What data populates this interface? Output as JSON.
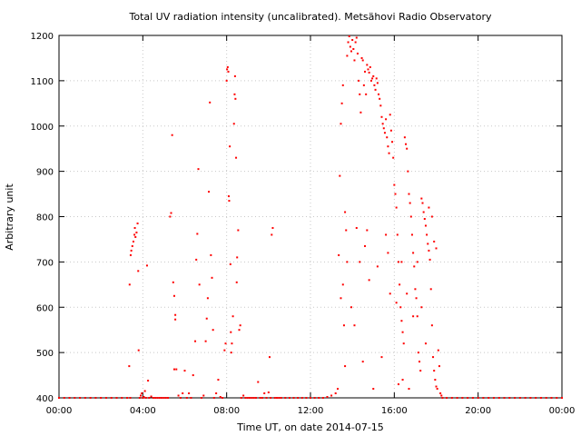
{
  "chart_data": {
    "type": "scatter",
    "title": "Total UV radiation intensity (uncalibrated). Metsähovi Radio Observatory",
    "xlabel": "Time UT, on date 2014-07-15",
    "ylabel": "Arbitrary unit",
    "xlim": [
      0,
      24
    ],
    "ylim": [
      400,
      1200
    ],
    "grid": true,
    "x_ticks": [
      {
        "value": 0,
        "label": "00:00"
      },
      {
        "value": 4,
        "label": "04:00"
      },
      {
        "value": 8,
        "label": "08:00"
      },
      {
        "value": 12,
        "label": "12:00"
      },
      {
        "value": 16,
        "label": "16:00"
      },
      {
        "value": 20,
        "label": "20:00"
      },
      {
        "value": 24,
        "label": "00:00"
      }
    ],
    "y_ticks": [
      {
        "value": 400,
        "label": "400"
      },
      {
        "value": 500,
        "label": "500"
      },
      {
        "value": 600,
        "label": "600"
      },
      {
        "value": 700,
        "label": "700"
      },
      {
        "value": 800,
        "label": "800"
      },
      {
        "value": 900,
        "label": "900"
      },
      {
        "value": 1000,
        "label": "1000"
      },
      {
        "value": 1100,
        "label": "1100"
      },
      {
        "value": 1200,
        "label": "1200"
      }
    ],
    "series": [
      {
        "color": "#ff0000",
        "points": [
          [
            0.0,
            400
          ],
          [
            0.25,
            400
          ],
          [
            0.5,
            400
          ],
          [
            0.75,
            400
          ],
          [
            1.0,
            400
          ],
          [
            1.25,
            400
          ],
          [
            1.5,
            400
          ],
          [
            1.75,
            400
          ],
          [
            2.0,
            400
          ],
          [
            2.25,
            400
          ],
          [
            2.5,
            400
          ],
          [
            2.75,
            400
          ],
          [
            3.0,
            400
          ],
          [
            3.25,
            400
          ],
          [
            3.4,
            400
          ],
          [
            3.35,
            470
          ],
          [
            3.37,
            650
          ],
          [
            3.42,
            715
          ],
          [
            3.45,
            725
          ],
          [
            3.5,
            735
          ],
          [
            3.55,
            745
          ],
          [
            3.6,
            760
          ],
          [
            3.62,
            775
          ],
          [
            3.65,
            755
          ],
          [
            3.7,
            765
          ],
          [
            3.75,
            785
          ],
          [
            3.78,
            680
          ],
          [
            3.8,
            505
          ],
          [
            3.85,
            400
          ],
          [
            3.9,
            405
          ],
          [
            3.95,
            410
          ],
          [
            4.0,
            400
          ],
          [
            4.05,
            402
          ],
          [
            4.1,
            415
          ],
          [
            4.15,
            400
          ],
          [
            4.2,
            692
          ],
          [
            4.25,
            438
          ],
          [
            4.3,
            400
          ],
          [
            4.4,
            403
          ],
          [
            4.5,
            400
          ],
          [
            4.6,
            400
          ],
          [
            4.7,
            400
          ],
          [
            4.8,
            400
          ],
          [
            4.9,
            400
          ],
          [
            5.0,
            400
          ],
          [
            5.1,
            400
          ],
          [
            5.2,
            400
          ],
          [
            5.3,
            800
          ],
          [
            5.35,
            808
          ],
          [
            5.4,
            980
          ],
          [
            5.45,
            655
          ],
          [
            5.5,
            625
          ],
          [
            5.55,
            583
          ],
          [
            5.55,
            573
          ],
          [
            5.5,
            463
          ],
          [
            5.6,
            463
          ],
          [
            5.7,
            405
          ],
          [
            5.8,
            400
          ],
          [
            5.9,
            410
          ],
          [
            6.0,
            460
          ],
          [
            6.1,
            400
          ],
          [
            6.2,
            410
          ],
          [
            6.3,
            400
          ],
          [
            6.4,
            450
          ],
          [
            6.5,
            525
          ],
          [
            6.55,
            705
          ],
          [
            6.6,
            762
          ],
          [
            6.65,
            905
          ],
          [
            6.7,
            650
          ],
          [
            6.8,
            400
          ],
          [
            6.9,
            405
          ],
          [
            7.0,
            525
          ],
          [
            7.05,
            575
          ],
          [
            7.1,
            620
          ],
          [
            7.15,
            855
          ],
          [
            7.2,
            1052
          ],
          [
            7.25,
            715
          ],
          [
            7.3,
            665
          ],
          [
            7.35,
            550
          ],
          [
            7.4,
            400
          ],
          [
            7.5,
            410
          ],
          [
            7.6,
            440
          ],
          [
            7.7,
            402
          ],
          [
            7.8,
            400
          ],
          [
            7.9,
            505
          ],
          [
            7.95,
            520
          ],
          [
            8.0,
            1100
          ],
          [
            8.02,
            1125
          ],
          [
            8.05,
            1130
          ],
          [
            8.08,
            1120
          ],
          [
            8.1,
            845
          ],
          [
            8.12,
            835
          ],
          [
            8.15,
            955
          ],
          [
            8.18,
            695
          ],
          [
            8.2,
            545
          ],
          [
            8.22,
            500
          ],
          [
            8.25,
            520
          ],
          [
            8.3,
            580
          ],
          [
            8.35,
            1005
          ],
          [
            8.38,
            1070
          ],
          [
            8.4,
            1110
          ],
          [
            8.42,
            1060
          ],
          [
            8.45,
            930
          ],
          [
            8.48,
            655
          ],
          [
            8.5,
            710
          ],
          [
            8.55,
            770
          ],
          [
            8.6,
            550
          ],
          [
            8.65,
            560
          ],
          [
            8.7,
            400
          ],
          [
            8.8,
            405
          ],
          [
            8.9,
            400
          ],
          [
            9.0,
            400
          ],
          [
            9.1,
            400
          ],
          [
            9.2,
            400
          ],
          [
            9.3,
            400
          ],
          [
            9.4,
            400
          ],
          [
            9.5,
            435
          ],
          [
            9.6,
            400
          ],
          [
            9.7,
            400
          ],
          [
            9.8,
            410
          ],
          [
            9.9,
            400
          ],
          [
            10.0,
            412
          ],
          [
            10.05,
            490
          ],
          [
            10.1,
            400
          ],
          [
            10.15,
            760
          ],
          [
            10.2,
            775
          ],
          [
            10.3,
            400
          ],
          [
            10.4,
            400
          ],
          [
            10.5,
            400
          ],
          [
            10.6,
            400
          ],
          [
            10.8,
            400
          ],
          [
            11.0,
            400
          ],
          [
            11.2,
            400
          ],
          [
            11.4,
            400
          ],
          [
            11.6,
            400
          ],
          [
            11.8,
            400
          ],
          [
            12.0,
            400
          ],
          [
            12.2,
            400
          ],
          [
            12.4,
            400
          ],
          [
            12.6,
            400
          ],
          [
            12.8,
            402
          ],
          [
            13.0,
            405
          ],
          [
            13.2,
            410
          ],
          [
            13.3,
            420
          ],
          [
            13.35,
            715
          ],
          [
            13.4,
            890
          ],
          [
            13.45,
            1005
          ],
          [
            13.5,
            1050
          ],
          [
            13.55,
            1090
          ],
          [
            13.6,
            560
          ],
          [
            13.65,
            470
          ],
          [
            13.7,
            770
          ],
          [
            13.75,
            1155
          ],
          [
            13.8,
            1185
          ],
          [
            13.85,
            1198
          ],
          [
            13.9,
            1175
          ],
          [
            13.95,
            1165
          ],
          [
            14.0,
            1190
          ],
          [
            14.05,
            1170
          ],
          [
            14.1,
            1145
          ],
          [
            14.15,
            1185
          ],
          [
            14.2,
            1195
          ],
          [
            14.25,
            1160
          ],
          [
            14.3,
            1100
          ],
          [
            14.35,
            1070
          ],
          [
            14.4,
            1030
          ],
          [
            14.45,
            1150
          ],
          [
            14.5,
            1145
          ],
          [
            14.55,
            1090
          ],
          [
            14.6,
            1120
          ],
          [
            14.65,
            1070
          ],
          [
            14.7,
            1135
          ],
          [
            14.75,
            1125
          ],
          [
            14.8,
            1118
          ],
          [
            14.85,
            1130
          ],
          [
            14.9,
            1100
          ],
          [
            14.95,
            1105
          ],
          [
            15.0,
            1110
          ],
          [
            15.05,
            1090
          ],
          [
            15.1,
            1080
          ],
          [
            15.15,
            1105
          ],
          [
            15.2,
            1095
          ],
          [
            15.25,
            1070
          ],
          [
            15.3,
            1060
          ],
          [
            15.35,
            1045
          ],
          [
            15.4,
            1020
          ],
          [
            15.45,
            1005
          ],
          [
            15.5,
            995
          ],
          [
            15.55,
            985
          ],
          [
            15.6,
            1015
          ],
          [
            15.65,
            975
          ],
          [
            15.7,
            955
          ],
          [
            15.75,
            940
          ],
          [
            15.8,
            1025
          ],
          [
            15.85,
            990
          ],
          [
            15.9,
            965
          ],
          [
            15.95,
            930
          ],
          [
            16.0,
            870
          ],
          [
            16.05,
            850
          ],
          [
            16.1,
            820
          ],
          [
            16.15,
            760
          ],
          [
            16.2,
            700
          ],
          [
            16.25,
            650
          ],
          [
            16.3,
            600
          ],
          [
            16.35,
            570
          ],
          [
            16.4,
            545
          ],
          [
            16.45,
            520
          ],
          [
            16.5,
            975
          ],
          [
            16.55,
            960
          ],
          [
            16.6,
            950
          ],
          [
            16.65,
            900
          ],
          [
            16.7,
            850
          ],
          [
            16.75,
            830
          ],
          [
            16.8,
            800
          ],
          [
            16.85,
            760
          ],
          [
            16.9,
            720
          ],
          [
            16.95,
            690
          ],
          [
            17.0,
            640
          ],
          [
            17.05,
            620
          ],
          [
            17.1,
            580
          ],
          [
            17.15,
            500
          ],
          [
            17.2,
            480
          ],
          [
            17.25,
            460
          ],
          [
            17.3,
            840
          ],
          [
            17.35,
            830
          ],
          [
            17.4,
            810
          ],
          [
            17.45,
            795
          ],
          [
            17.5,
            780
          ],
          [
            17.55,
            760
          ],
          [
            17.6,
            740
          ],
          [
            17.65,
            725
          ],
          [
            17.7,
            705
          ],
          [
            17.75,
            640
          ],
          [
            17.8,
            560
          ],
          [
            17.85,
            490
          ],
          [
            17.9,
            460
          ],
          [
            17.95,
            440
          ],
          [
            18.0,
            425
          ],
          [
            18.05,
            420
          ],
          [
            18.1,
            505
          ],
          [
            18.15,
            470
          ],
          [
            18.2,
            410
          ],
          [
            18.25,
            405
          ],
          [
            18.3,
            400
          ],
          [
            18.5,
            400
          ],
          [
            18.75,
            400
          ],
          [
            19.0,
            400
          ],
          [
            19.25,
            400
          ],
          [
            19.5,
            400
          ],
          [
            19.75,
            400
          ],
          [
            20.0,
            400
          ],
          [
            20.25,
            400
          ],
          [
            20.5,
            400
          ],
          [
            20.75,
            400
          ],
          [
            21.0,
            400
          ],
          [
            21.25,
            400
          ],
          [
            21.5,
            400
          ],
          [
            21.75,
            400
          ],
          [
            22.0,
            400
          ],
          [
            22.25,
            400
          ],
          [
            22.5,
            400
          ],
          [
            22.75,
            400
          ],
          [
            23.0,
            400
          ],
          [
            23.25,
            400
          ],
          [
            23.5,
            400
          ],
          [
            23.75,
            400
          ],
          [
            24.0,
            400
          ],
          [
            13.45,
            620
          ],
          [
            13.55,
            650
          ],
          [
            13.65,
            810
          ],
          [
            13.75,
            700
          ],
          [
            13.95,
            600
          ],
          [
            14.1,
            560
          ],
          [
            14.2,
            775
          ],
          [
            14.35,
            700
          ],
          [
            14.5,
            480
          ],
          [
            14.6,
            735
          ],
          [
            14.7,
            770
          ],
          [
            14.8,
            660
          ],
          [
            15.0,
            420
          ],
          [
            15.2,
            690
          ],
          [
            15.4,
            490
          ],
          [
            15.6,
            760
          ],
          [
            15.7,
            720
          ],
          [
            15.8,
            630
          ],
          [
            16.1,
            610
          ],
          [
            16.2,
            430
          ],
          [
            16.35,
            700
          ],
          [
            16.4,
            440
          ],
          [
            16.6,
            630
          ],
          [
            16.7,
            420
          ],
          [
            16.9,
            580
          ],
          [
            17.1,
            700
          ],
          [
            17.3,
            600
          ],
          [
            17.5,
            520
          ],
          [
            17.65,
            820
          ],
          [
            17.8,
            800
          ],
          [
            17.9,
            745
          ],
          [
            18.0,
            730
          ]
        ]
      }
    ]
  }
}
